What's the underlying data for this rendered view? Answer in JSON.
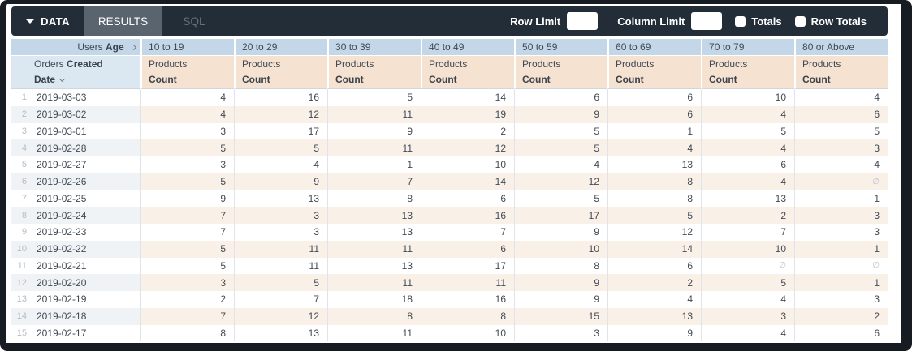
{
  "toolbar": {
    "tabs": [
      {
        "label": "DATA",
        "active": true,
        "has_caret": true
      },
      {
        "label": "RESULTS",
        "selected": true
      },
      {
        "label": "SQL",
        "selected": false
      }
    ],
    "row_limit_label": "Row Limit",
    "row_limit_value": "",
    "column_limit_label": "Column Limit",
    "column_limit_value": "",
    "totals_label": "Totals",
    "totals_checked": false,
    "row_totals_label": "Row Totals",
    "row_totals_checked": false
  },
  "table": {
    "pivot": {
      "regular": "Users",
      "bold": "Age",
      "values": [
        "10 to 19",
        "20 to 29",
        "30 to 39",
        "40 to 49",
        "50 to 59",
        "60 to 69",
        "70 to 79",
        "80 or Above"
      ]
    },
    "row_dimension": {
      "regular": "Orders",
      "bold1": "Created",
      "bold2": "Date"
    },
    "measure": {
      "line1": "Products",
      "line2": "Count"
    },
    "null_glyph": "∅",
    "rows": [
      {
        "n": "1",
        "date": "2019-03-03",
        "v": [
          4,
          16,
          5,
          14,
          6,
          6,
          10,
          4
        ]
      },
      {
        "n": "2",
        "date": "2019-03-02",
        "v": [
          4,
          12,
          11,
          19,
          9,
          6,
          4,
          6
        ]
      },
      {
        "n": "3",
        "date": "2019-03-01",
        "v": [
          3,
          17,
          9,
          2,
          5,
          1,
          5,
          5
        ]
      },
      {
        "n": "4",
        "date": "2019-02-28",
        "v": [
          5,
          5,
          11,
          12,
          5,
          4,
          4,
          3
        ]
      },
      {
        "n": "5",
        "date": "2019-02-27",
        "v": [
          3,
          4,
          1,
          10,
          4,
          13,
          6,
          4
        ]
      },
      {
        "n": "6",
        "date": "2019-02-26",
        "v": [
          5,
          9,
          7,
          14,
          12,
          8,
          4,
          null
        ]
      },
      {
        "n": "7",
        "date": "2019-02-25",
        "v": [
          9,
          13,
          8,
          6,
          5,
          8,
          13,
          1
        ]
      },
      {
        "n": "8",
        "date": "2019-02-24",
        "v": [
          7,
          3,
          13,
          16,
          17,
          5,
          2,
          3
        ]
      },
      {
        "n": "9",
        "date": "2019-02-23",
        "v": [
          7,
          3,
          13,
          7,
          9,
          12,
          7,
          3
        ]
      },
      {
        "n": "10",
        "date": "2019-02-22",
        "v": [
          5,
          11,
          11,
          6,
          10,
          14,
          10,
          1
        ]
      },
      {
        "n": "11",
        "date": "2019-02-21",
        "v": [
          5,
          11,
          13,
          17,
          8,
          6,
          null,
          null
        ]
      },
      {
        "n": "12",
        "date": "2019-02-20",
        "v": [
          3,
          5,
          11,
          11,
          9,
          2,
          5,
          1
        ]
      },
      {
        "n": "13",
        "date": "2019-02-19",
        "v": [
          2,
          7,
          18,
          16,
          9,
          4,
          4,
          3
        ]
      },
      {
        "n": "14",
        "date": "2019-02-18",
        "v": [
          7,
          12,
          8,
          8,
          15,
          13,
          3,
          2
        ]
      },
      {
        "n": "15",
        "date": "2019-02-17",
        "v": [
          8,
          13,
          11,
          10,
          3,
          9,
          4,
          6
        ]
      }
    ]
  },
  "colors": {
    "frame": "#171c22",
    "toolbar-bg": "#232d38",
    "tab-selected-bg": "#5a646e",
    "tab-inactive-text": "#67707a",
    "pivot-band": "#c4d7e8",
    "dim-cell": "#dce8f1",
    "measure-band": "#f6e2d1",
    "stripe-dim": "#f0f3f6",
    "stripe-measure": "#f9f0e8",
    "text": "#414a54",
    "rownum-text": "#b6bcc3",
    "null-text": "#bcc2c8"
  }
}
